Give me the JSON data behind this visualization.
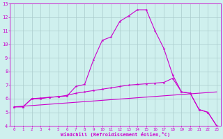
{
  "title": "",
  "xlabel": "Windchill (Refroidissement éolien,°C)",
  "bg_color": "#cff0ee",
  "line_color": "#cc00cc",
  "grid_color": "#aacccc",
  "xlim": [
    -0.5,
    23.5
  ],
  "ylim": [
    4,
    13
  ],
  "xticks": [
    0,
    1,
    2,
    3,
    4,
    5,
    6,
    7,
    8,
    9,
    10,
    11,
    12,
    13,
    14,
    15,
    16,
    17,
    18,
    19,
    20,
    21,
    22,
    23
  ],
  "yticks": [
    4,
    5,
    6,
    7,
    8,
    9,
    10,
    11,
    12,
    13
  ],
  "line1_x": [
    0,
    1,
    2,
    3,
    4,
    5,
    6,
    7,
    8,
    9,
    10,
    11,
    12,
    13,
    14,
    15,
    16,
    17,
    18,
    19,
    20,
    21,
    22,
    23
  ],
  "line1_y": [
    5.4,
    5.4,
    6.0,
    6.0,
    6.1,
    6.15,
    6.2,
    6.9,
    7.05,
    8.85,
    10.3,
    10.55,
    11.7,
    12.1,
    12.55,
    12.55,
    11.0,
    9.7,
    7.75,
    6.5,
    6.4,
    5.2,
    5.0,
    4.0
  ],
  "line2_x": [
    0,
    1,
    2,
    3,
    4,
    5,
    6,
    7,
    8,
    9,
    10,
    11,
    12,
    13,
    14,
    15,
    16,
    17,
    18,
    19,
    20,
    21,
    22,
    23
  ],
  "line2_y": [
    5.4,
    5.4,
    6.0,
    6.05,
    6.1,
    6.15,
    6.25,
    6.4,
    6.5,
    6.6,
    6.7,
    6.8,
    6.9,
    7.0,
    7.05,
    7.1,
    7.15,
    7.2,
    7.5,
    6.5,
    6.4,
    5.2,
    5.0,
    4.0
  ],
  "line3_x": [
    0,
    23
  ],
  "line3_y": [
    5.4,
    6.5
  ]
}
